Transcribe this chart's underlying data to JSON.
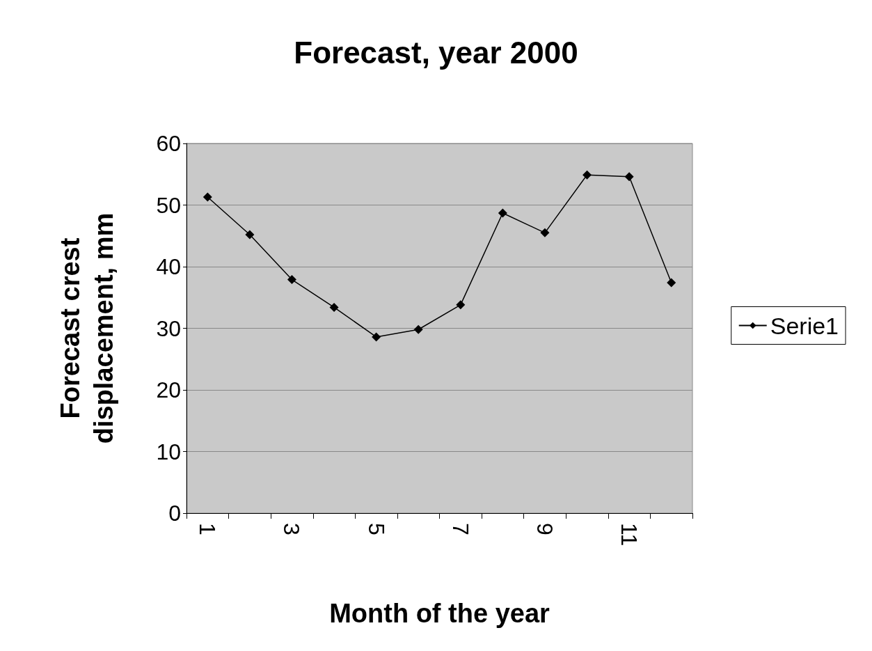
{
  "chart_data": {
    "type": "line",
    "title": "Forecast, year 2000",
    "xlabel": "Month of the year",
    "ylabel": "Forecast crest\ndisplacement, mm",
    "categories": [
      "1",
      null,
      "3",
      null,
      "5",
      null,
      "7",
      null,
      "9",
      null,
      "11",
      null
    ],
    "series": [
      {
        "name": "Serie1",
        "color": "#000000",
        "values": [
          51.3,
          45.2,
          37.9,
          33.4,
          28.6,
          29.8,
          33.8,
          48.7,
          45.5,
          54.9,
          54.6,
          37.4
        ]
      }
    ],
    "ylim": [
      0,
      60
    ],
    "yticks": [
      0,
      10,
      20,
      30,
      40,
      50,
      60
    ],
    "grid": "y",
    "legend": "right",
    "marker": "diamond",
    "line_style": "solid"
  }
}
